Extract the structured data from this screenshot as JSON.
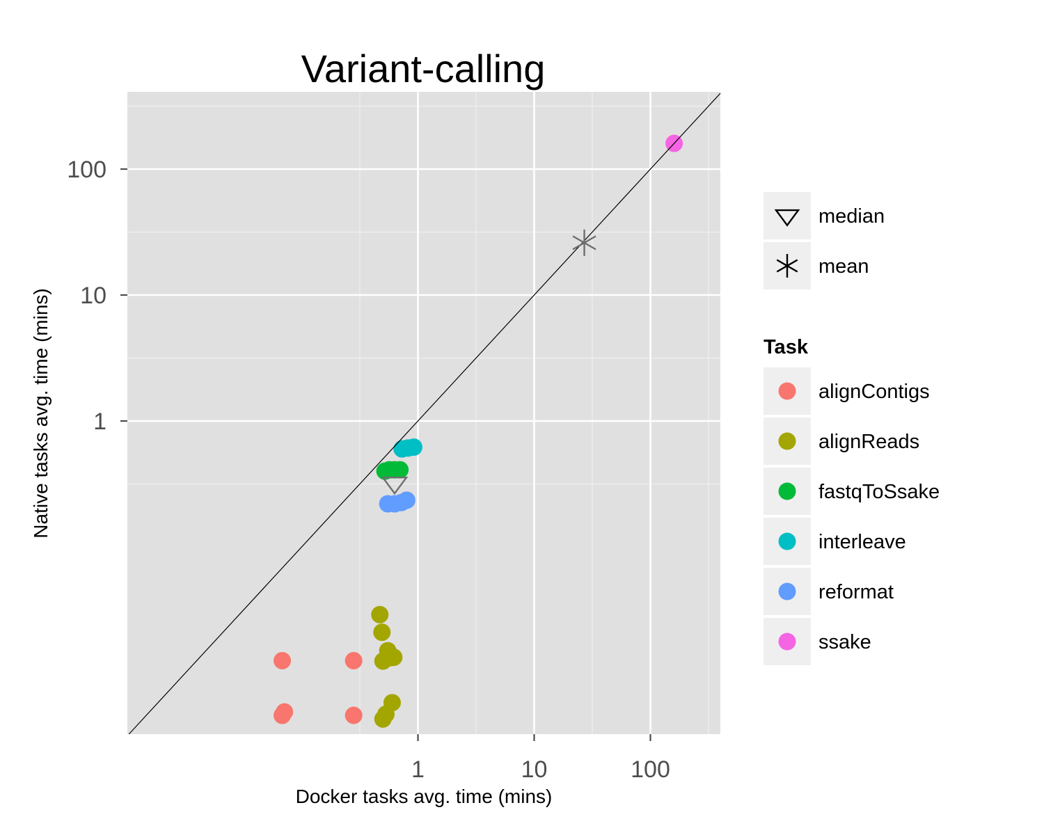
{
  "chart_data": {
    "type": "scatter",
    "title": "Variant-calling",
    "xlabel": "Docker tasks avg. time (mins)",
    "ylabel": "Native tasks avg. time (mins)",
    "scale": "log10",
    "xlim": [
      0.0025,
      420
    ],
    "ylim": [
      0.0023,
      420
    ],
    "xticks": [
      1,
      10,
      100
    ],
    "yticks": [
      1,
      10,
      100
    ],
    "xtick_labels": [
      "1",
      "10",
      "100"
    ],
    "ytick_labels": [
      "1",
      "10",
      "100"
    ],
    "grid": true,
    "reference_line": "y = x",
    "legend_position": "right",
    "legend_title": "Task",
    "series": [
      {
        "name": "alignContigs",
        "color": "#F8766D",
        "points": [
          [
            0.068,
            0.0125
          ],
          [
            0.068,
            0.0046
          ],
          [
            0.071,
            0.0049
          ],
          [
            0.28,
            0.0125
          ],
          [
            0.28,
            0.0046
          ]
        ]
      },
      {
        "name": "alignReads",
        "color": "#A3A500",
        "points": [
          [
            0.47,
            0.029
          ],
          [
            0.49,
            0.021
          ],
          [
            0.55,
            0.015
          ],
          [
            0.58,
            0.0132
          ],
          [
            0.62,
            0.0133
          ],
          [
            0.5,
            0.0124
          ],
          [
            0.5,
            0.0043
          ],
          [
            0.53,
            0.0047
          ],
          [
            0.6,
            0.0058
          ]
        ]
      },
      {
        "name": "fastqToSsake",
        "color": "#00BA38",
        "points": [
          [
            0.52,
            0.4
          ],
          [
            0.57,
            0.41
          ],
          [
            0.63,
            0.41
          ],
          [
            0.7,
            0.41
          ]
        ]
      },
      {
        "name": "interleave",
        "color": "#00BFC4",
        "points": [
          [
            0.73,
            0.6
          ],
          [
            0.82,
            0.61
          ],
          [
            0.92,
            0.62
          ]
        ]
      },
      {
        "name": "reformat",
        "color": "#619CFF",
        "points": [
          [
            0.55,
            0.22
          ],
          [
            0.63,
            0.22
          ],
          [
            0.72,
            0.225
          ],
          [
            0.8,
            0.235
          ]
        ]
      },
      {
        "name": "ssake",
        "color": "#F564E3",
        "points": [
          [
            160,
            160
          ]
        ]
      }
    ],
    "summary_markers": [
      {
        "name": "median",
        "symbol": "open-down-triangle",
        "color": "#6e6e6e",
        "x": 0.63,
        "y": 0.32
      },
      {
        "name": "mean",
        "symbol": "asterisk",
        "color": "#6e6e6e",
        "x": 27,
        "y": 26
      }
    ]
  }
}
